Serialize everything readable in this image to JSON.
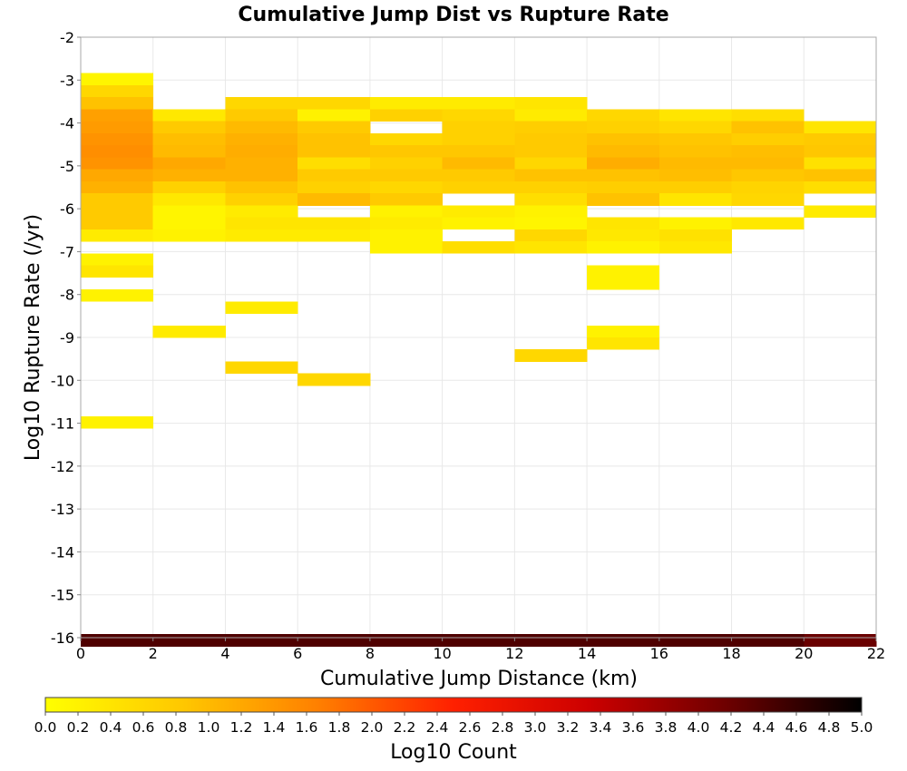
{
  "chart_data": {
    "type": "heatmap",
    "title": "Cumulative Jump Dist vs Rupture Rate",
    "xlabel": "Cumulative Jump Distance (km)",
    "ylabel": "Log10 Rupture Rate (/yr)",
    "xlim": [
      0,
      22
    ],
    "ylim": [
      -16,
      -2
    ],
    "xticks": [
      "0",
      "2",
      "4",
      "6",
      "8",
      "10",
      "12",
      "14",
      "16",
      "18",
      "20",
      "22"
    ],
    "yticks": [
      "-2",
      "-3",
      "-4",
      "-5",
      "-6",
      "-7",
      "-8",
      "-9",
      "-10",
      "-11",
      "-12",
      "-13",
      "-14",
      "-15",
      "-16"
    ],
    "grid": true,
    "x_bin_width": 2,
    "y_bin_height": 0.28,
    "colorbar": {
      "label": "Log10 Count",
      "range": [
        0,
        5
      ],
      "ticks": [
        "0.0",
        "0.2",
        "0.4",
        "0.6",
        "0.8",
        "1.0",
        "1.2",
        "1.4",
        "1.6",
        "1.8",
        "2.0",
        "2.2",
        "2.4",
        "2.6",
        "2.8",
        "3.0",
        "3.2",
        "3.4",
        "3.6",
        "3.8",
        "4.0",
        "4.2",
        "4.4",
        "4.6",
        "4.8",
        "5.0"
      ],
      "colormap": [
        "#ffff00",
        "#ffc800",
        "#ff8000",
        "#ff2000",
        "#cc0000",
        "#6e0000",
        "#000000"
      ]
    },
    "columns": [
      {
        "x": 0,
        "cells": [
          {
            "y": -2.84,
            "v": 0.15
          },
          {
            "y": -3.12,
            "v": 0.6
          },
          {
            "y": -3.4,
            "v": 0.9
          },
          {
            "y": -3.68,
            "v": 1.3
          },
          {
            "y": -3.96,
            "v": 1.35
          },
          {
            "y": -4.24,
            "v": 1.45
          },
          {
            "y": -4.52,
            "v": 1.5
          },
          {
            "y": -4.8,
            "v": 1.45
          },
          {
            "y": -5.08,
            "v": 1.2
          },
          {
            "y": -5.36,
            "v": 1.1
          },
          {
            "y": -5.64,
            "v": 0.8
          },
          {
            "y": -5.92,
            "v": 0.8
          },
          {
            "y": -6.2,
            "v": 0.8
          },
          {
            "y": -6.48,
            "v": 0.3
          },
          {
            "y": -7.04,
            "v": 0.2
          },
          {
            "y": -7.32,
            "v": 0.4
          },
          {
            "y": -7.88,
            "v": 0.2
          },
          {
            "y": -10.84,
            "v": 0.2
          },
          {
            "y": -15.92,
            "v": 4.4
          }
        ]
      },
      {
        "x": 2,
        "cells": [
          {
            "y": -3.68,
            "v": 0.35
          },
          {
            "y": -3.96,
            "v": 0.8
          },
          {
            "y": -4.24,
            "v": 0.95
          },
          {
            "y": -4.52,
            "v": 1.0
          },
          {
            "y": -4.8,
            "v": 1.2
          },
          {
            "y": -5.08,
            "v": 1.1
          },
          {
            "y": -5.36,
            "v": 0.7
          },
          {
            "y": -5.64,
            "v": 0.35
          },
          {
            "y": -5.92,
            "v": 0.15
          },
          {
            "y": -6.2,
            "v": 0.15
          },
          {
            "y": -6.48,
            "v": 0.2
          },
          {
            "y": -8.72,
            "v": 0.3
          },
          {
            "y": -15.92,
            "v": 4.4
          }
        ]
      },
      {
        "x": 4,
        "cells": [
          {
            "y": -3.4,
            "v": 0.6
          },
          {
            "y": -3.68,
            "v": 0.8
          },
          {
            "y": -3.96,
            "v": 1.0
          },
          {
            "y": -4.24,
            "v": 1.1
          },
          {
            "y": -4.52,
            "v": 1.15
          },
          {
            "y": -4.8,
            "v": 1.1
          },
          {
            "y": -5.08,
            "v": 1.1
          },
          {
            "y": -5.36,
            "v": 0.9
          },
          {
            "y": -5.64,
            "v": 0.7
          },
          {
            "y": -5.92,
            "v": 0.3
          },
          {
            "y": -6.2,
            "v": 0.4
          },
          {
            "y": -6.48,
            "v": 0.3
          },
          {
            "y": -8.16,
            "v": 0.3
          },
          {
            "y": -9.56,
            "v": 0.6
          },
          {
            "y": -15.92,
            "v": 4.4
          }
        ]
      },
      {
        "x": 6,
        "cells": [
          {
            "y": -3.4,
            "v": 0.6
          },
          {
            "y": -3.68,
            "v": 0.2
          },
          {
            "y": -3.96,
            "v": 0.8
          },
          {
            "y": -4.24,
            "v": 0.9
          },
          {
            "y": -4.52,
            "v": 0.9
          },
          {
            "y": -4.8,
            "v": 0.5
          },
          {
            "y": -5.08,
            "v": 0.8
          },
          {
            "y": -5.36,
            "v": 0.7
          },
          {
            "y": -5.64,
            "v": 1.0
          },
          {
            "y": -6.2,
            "v": 0.4
          },
          {
            "y": -6.48,
            "v": 0.3
          },
          {
            "y": -9.84,
            "v": 0.6
          },
          {
            "y": -15.92,
            "v": 4.4
          }
        ]
      },
      {
        "x": 8,
        "cells": [
          {
            "y": -3.4,
            "v": 0.3
          },
          {
            "y": -3.68,
            "v": 0.7
          },
          {
            "y": -4.24,
            "v": 0.6
          },
          {
            "y": -4.52,
            "v": 0.85
          },
          {
            "y": -4.8,
            "v": 0.7
          },
          {
            "y": -5.08,
            "v": 0.8
          },
          {
            "y": -5.36,
            "v": 0.6
          },
          {
            "y": -5.64,
            "v": 0.8
          },
          {
            "y": -5.92,
            "v": 0.2
          },
          {
            "y": -6.2,
            "v": 0.3
          },
          {
            "y": -6.48,
            "v": 0.2
          },
          {
            "y": -6.76,
            "v": 0.2
          },
          {
            "y": -15.92,
            "v": 4.4
          }
        ]
      },
      {
        "x": 10,
        "cells": [
          {
            "y": -3.4,
            "v": 0.3
          },
          {
            "y": -3.68,
            "v": 0.6
          },
          {
            "y": -3.96,
            "v": 0.7
          },
          {
            "y": -4.24,
            "v": 0.7
          },
          {
            "y": -4.52,
            "v": 0.85
          },
          {
            "y": -4.8,
            "v": 1.0
          },
          {
            "y": -5.08,
            "v": 0.8
          },
          {
            "y": -5.36,
            "v": 0.7
          },
          {
            "y": -5.92,
            "v": 0.3
          },
          {
            "y": -6.2,
            "v": 0.2
          },
          {
            "y": -6.76,
            "v": 0.5
          },
          {
            "y": -15.92,
            "v": 4.4
          }
        ]
      },
      {
        "x": 12,
        "cells": [
          {
            "y": -3.4,
            "v": 0.4
          },
          {
            "y": -3.68,
            "v": 0.3
          },
          {
            "y": -3.96,
            "v": 0.75
          },
          {
            "y": -4.24,
            "v": 0.8
          },
          {
            "y": -4.52,
            "v": 0.8
          },
          {
            "y": -4.8,
            "v": 0.6
          },
          {
            "y": -5.08,
            "v": 0.9
          },
          {
            "y": -5.36,
            "v": 0.7
          },
          {
            "y": -5.64,
            "v": 0.5
          },
          {
            "y": -5.92,
            "v": 0.2
          },
          {
            "y": -6.2,
            "v": 0.15
          },
          {
            "y": -6.48,
            "v": 0.6
          },
          {
            "y": -6.76,
            "v": 0.4
          },
          {
            "y": -9.28,
            "v": 0.6
          },
          {
            "y": -15.92,
            "v": 4.4
          }
        ]
      },
      {
        "x": 14,
        "cells": [
          {
            "y": -3.68,
            "v": 0.6
          },
          {
            "y": -3.96,
            "v": 0.7
          },
          {
            "y": -4.24,
            "v": 0.9
          },
          {
            "y": -4.52,
            "v": 1.0
          },
          {
            "y": -4.8,
            "v": 1.15
          },
          {
            "y": -5.08,
            "v": 0.9
          },
          {
            "y": -5.36,
            "v": 0.75
          },
          {
            "y": -5.64,
            "v": 0.9
          },
          {
            "y": -6.2,
            "v": 0.4
          },
          {
            "y": -6.48,
            "v": 0.35
          },
          {
            "y": -6.76,
            "v": 0.2
          },
          {
            "y": -7.32,
            "v": 0.2
          },
          {
            "y": -7.6,
            "v": 0.2
          },
          {
            "y": -8.72,
            "v": 0.2
          },
          {
            "y": -9.0,
            "v": 0.4
          },
          {
            "y": -15.92,
            "v": 4.4
          }
        ]
      },
      {
        "x": 16,
        "cells": [
          {
            "y": -3.68,
            "v": 0.4
          },
          {
            "y": -3.96,
            "v": 0.6
          },
          {
            "y": -4.24,
            "v": 0.85
          },
          {
            "y": -4.52,
            "v": 0.9
          },
          {
            "y": -4.8,
            "v": 1.0
          },
          {
            "y": -5.08,
            "v": 0.95
          },
          {
            "y": -5.36,
            "v": 0.75
          },
          {
            "y": -5.64,
            "v": 0.4
          },
          {
            "y": -6.2,
            "v": 0.2
          },
          {
            "y": -6.48,
            "v": 0.45
          },
          {
            "y": -6.76,
            "v": 0.35
          },
          {
            "y": -15.92,
            "v": 4.4
          }
        ]
      },
      {
        "x": 18,
        "cells": [
          {
            "y": -3.68,
            "v": 0.5
          },
          {
            "y": -3.96,
            "v": 0.9
          },
          {
            "y": -4.24,
            "v": 0.75
          },
          {
            "y": -4.52,
            "v": 0.95
          },
          {
            "y": -4.8,
            "v": 1.0
          },
          {
            "y": -5.08,
            "v": 0.85
          },
          {
            "y": -5.36,
            "v": 0.65
          },
          {
            "y": -5.64,
            "v": 0.6
          },
          {
            "y": -6.2,
            "v": 0.35
          },
          {
            "y": -15.92,
            "v": 4.4
          }
        ]
      },
      {
        "x": 20,
        "cells": [
          {
            "y": -3.96,
            "v": 0.4
          },
          {
            "y": -4.24,
            "v": 0.8
          },
          {
            "y": -4.52,
            "v": 0.85
          },
          {
            "y": -4.8,
            "v": 0.45
          },
          {
            "y": -5.08,
            "v": 0.9
          },
          {
            "y": -5.36,
            "v": 0.5
          },
          {
            "y": -5.92,
            "v": 0.3
          },
          {
            "y": -15.92,
            "v": 4.2
          }
        ]
      }
    ]
  }
}
